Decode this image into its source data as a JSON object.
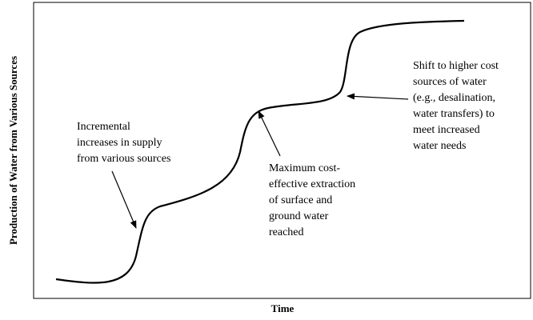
{
  "y_axis_label": "Production of Water from Various Sources",
  "x_axis_label": "Time",
  "annotations": [
    {
      "lines": [
        "Incremental",
        "increases in supply",
        "from various sources"
      ]
    },
    {
      "lines": [
        "Maximum cost-",
        "effective extraction",
        "of surface and",
        "ground water",
        "reached"
      ]
    },
    {
      "lines": [
        "Shift to higher cost",
        "sources of water",
        "(e.g., desalination,",
        "water transfers) to",
        "meet increased",
        "water needs"
      ]
    }
  ]
}
